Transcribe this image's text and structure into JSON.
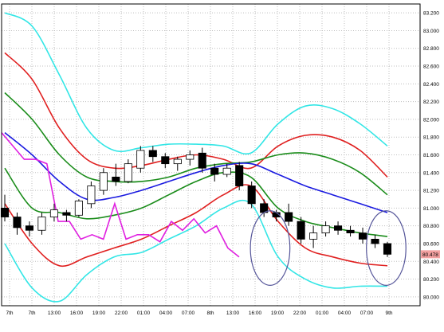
{
  "colors": {
    "background": "#ffffff",
    "plot_border": "#000000",
    "grid": "#bfbfbf",
    "candle_up_fill": "#ffffff",
    "candle_down_fill": "#000000",
    "candle_stroke": "#000000",
    "price_marker_bg": "#f2a0a0"
  },
  "chart_data": {
    "type": "candlestick",
    "ylim": [
      79.9,
      83.3
    ],
    "y_ticks": [
      "80.000",
      "80.200",
      "80.400",
      "80.600",
      "80.800",
      "81.000",
      "81.200",
      "81.400",
      "81.600",
      "81.800",
      "82.000",
      "82.200",
      "82.400",
      "82.600",
      "82.800",
      "83.000",
      "83.200"
    ],
    "x_ticks": [
      "7th",
      "7th",
      "13:00",
      "16:00",
      "19:00",
      "22:00",
      "01:00",
      "04:00",
      "07:00",
      "8th",
      "13:00",
      "16:00",
      "19:00",
      "22:00",
      "01:00",
      "04:00",
      "07:00",
      "9th"
    ],
    "current_price_label": "80.478",
    "candles": [
      {
        "o": 81.0,
        "h": 81.15,
        "l": 80.85,
        "c": 80.9
      },
      {
        "o": 80.9,
        "h": 80.95,
        "l": 80.7,
        "c": 80.78
      },
      {
        "o": 80.8,
        "h": 80.85,
        "l": 80.68,
        "c": 80.75
      },
      {
        "o": 80.75,
        "h": 80.95,
        "l": 80.7,
        "c": 80.9
      },
      {
        "o": 80.9,
        "h": 81.05,
        "l": 80.85,
        "c": 80.98
      },
      {
        "o": 80.95,
        "h": 80.98,
        "l": 80.85,
        "c": 80.92
      },
      {
        "o": 80.92,
        "h": 81.1,
        "l": 80.9,
        "c": 81.08
      },
      {
        "o": 81.05,
        "h": 81.3,
        "l": 81.0,
        "c": 81.25
      },
      {
        "o": 81.2,
        "h": 81.45,
        "l": 81.15,
        "c": 81.4
      },
      {
        "o": 81.35,
        "h": 81.5,
        "l": 81.25,
        "c": 81.3
      },
      {
        "o": 81.3,
        "h": 81.55,
        "l": 81.28,
        "c": 81.5
      },
      {
        "o": 81.45,
        "h": 81.7,
        "l": 81.4,
        "c": 81.65
      },
      {
        "o": 81.65,
        "h": 81.7,
        "l": 81.52,
        "c": 81.58
      },
      {
        "o": 81.58,
        "h": 81.62,
        "l": 81.45,
        "c": 81.5
      },
      {
        "o": 81.5,
        "h": 81.58,
        "l": 81.42,
        "c": 81.55
      },
      {
        "o": 81.55,
        "h": 81.65,
        "l": 81.48,
        "c": 81.6
      },
      {
        "o": 81.62,
        "h": 81.68,
        "l": 81.4,
        "c": 81.45
      },
      {
        "o": 81.45,
        "h": 81.5,
        "l": 81.3,
        "c": 81.38
      },
      {
        "o": 81.38,
        "h": 81.5,
        "l": 81.35,
        "c": 81.45
      },
      {
        "o": 81.48,
        "h": 81.52,
        "l": 81.2,
        "c": 81.25
      },
      {
        "o": 81.25,
        "h": 81.3,
        "l": 81.0,
        "c": 81.05
      },
      {
        "o": 81.05,
        "h": 81.1,
        "l": 80.9,
        "c": 80.95
      },
      {
        "o": 80.95,
        "h": 80.98,
        "l": 80.85,
        "c": 80.9
      },
      {
        "o": 80.95,
        "h": 81.05,
        "l": 80.8,
        "c": 80.85
      },
      {
        "o": 80.85,
        "h": 80.9,
        "l": 80.6,
        "c": 80.65
      },
      {
        "o": 80.65,
        "h": 80.8,
        "l": 80.55,
        "c": 80.72
      },
      {
        "o": 80.72,
        "h": 80.85,
        "l": 80.68,
        "c": 80.8
      },
      {
        "o": 80.8,
        "h": 80.85,
        "l": 80.7,
        "c": 80.75
      },
      {
        "o": 80.75,
        "h": 80.8,
        "l": 80.68,
        "c": 80.72
      },
      {
        "o": 80.72,
        "h": 80.78,
        "l": 80.6,
        "c": 80.65
      },
      {
        "o": 80.65,
        "h": 80.7,
        "l": 80.55,
        "c": 80.6
      },
      {
        "o": 80.6,
        "h": 80.62,
        "l": 80.45,
        "c": 80.48
      }
    ],
    "lines": [
      {
        "color": "#33e6e6",
        "values": [
          83.2,
          83.05,
          82.5,
          81.9,
          81.65,
          81.68,
          81.72,
          81.72,
          81.7,
          81.62,
          81.95,
          82.15,
          82.12,
          81.95,
          81.7
        ]
      },
      {
        "color": "#e02020",
        "values": [
          82.75,
          82.45,
          81.9,
          81.55,
          81.45,
          81.48,
          81.55,
          81.6,
          81.55,
          81.45,
          81.7,
          81.82,
          81.8,
          81.65,
          81.35
        ]
      },
      {
        "color": "#1a8c1a",
        "values": [
          82.3,
          82.0,
          81.6,
          81.35,
          81.3,
          81.3,
          81.35,
          81.45,
          81.5,
          81.52,
          81.6,
          81.62,
          81.55,
          81.4,
          81.15
        ]
      },
      {
        "color": "#1a1ae0",
        "values": [
          81.85,
          81.6,
          81.3,
          81.1,
          81.12,
          81.2,
          81.3,
          81.4,
          81.48,
          81.5,
          81.38,
          81.25,
          81.15,
          81.05,
          80.95
        ]
      },
      {
        "color": "#1a8c1a",
        "values": [
          81.45,
          81.0,
          80.95,
          80.88,
          80.92,
          81.0,
          81.15,
          81.3,
          81.4,
          81.35,
          81.0,
          80.85,
          80.78,
          80.72,
          80.68
        ]
      },
      {
        "color": "#e02020",
        "values": [
          81.05,
          80.6,
          80.35,
          80.45,
          80.55,
          80.65,
          80.8,
          80.95,
          81.15,
          81.25,
          80.85,
          80.55,
          80.45,
          80.38,
          80.35
        ]
      },
      {
        "color": "#33e6e6",
        "values": [
          80.6,
          80.1,
          79.95,
          80.25,
          80.45,
          80.5,
          80.65,
          80.8,
          81.0,
          81.05,
          80.45,
          80.2,
          80.1,
          80.12,
          80.12
        ]
      }
    ],
    "lagging_line": {
      "color": "#e020e0",
      "values": [
        81.85,
        81.7,
        81.55,
        81.55,
        81.5,
        80.85,
        80.85,
        80.65,
        80.7,
        80.65,
        81.05,
        80.65,
        80.7,
        80.7,
        80.62,
        80.85,
        80.75,
        80.88,
        80.72,
        80.8,
        80.55,
        80.45
      ]
    },
    "markers": [
      {
        "shape": "ellipse",
        "color": "#555599",
        "center_x_index": 21.5,
        "center_y_value": 80.55,
        "half_width_candles": 1.6,
        "half_height_value": 0.42
      },
      {
        "shape": "ellipse",
        "color": "#555599",
        "center_x_index": 30.9,
        "center_y_value": 80.55,
        "half_width_candles": 1.6,
        "half_height_value": 0.42
      }
    ]
  }
}
